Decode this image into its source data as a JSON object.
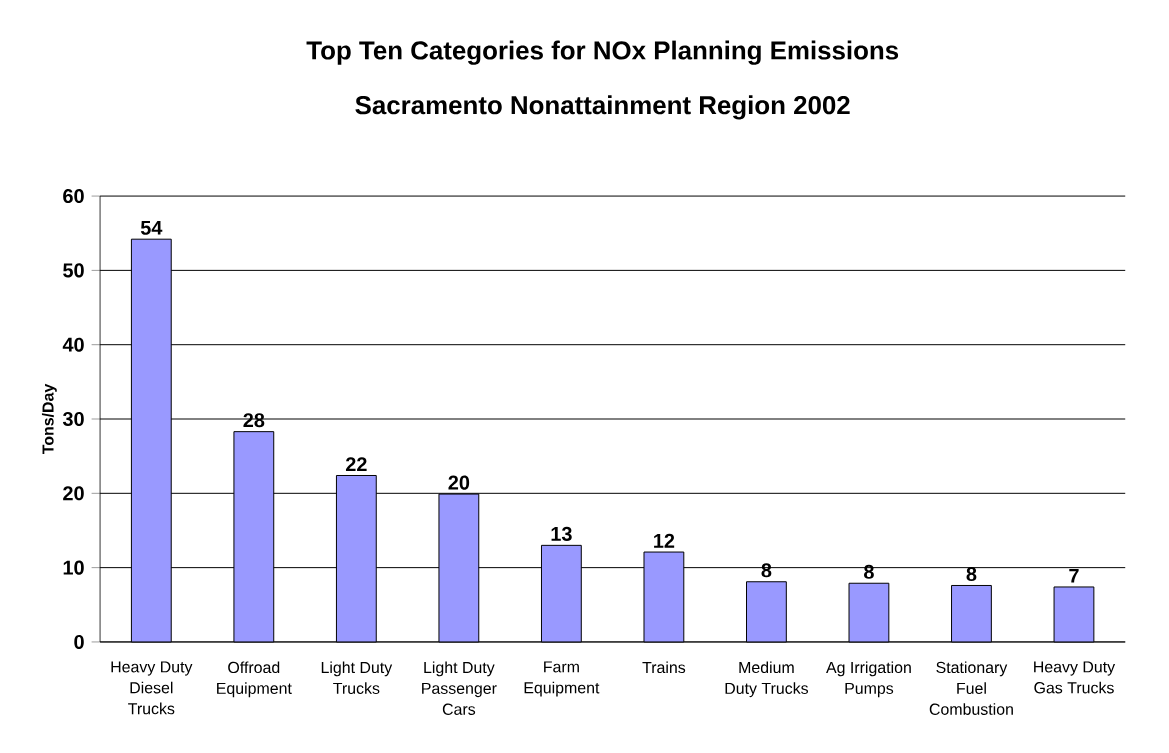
{
  "chart_data": {
    "type": "bar",
    "title": "Top Ten Categories for NOx Planning Emissions",
    "subtitle": "Sacramento Nonattainment Region 2002",
    "ylabel": "Tons/Day",
    "categories": [
      "Heavy Duty Diesel Trucks",
      "Offroad Equipment",
      "Light Duty Trucks",
      "Light Duty Passenger Cars",
      "Farm Equipment",
      "Trains",
      "Medium Duty Trucks",
      "Ag Irrigation Pumps",
      "Stationary Fuel Combustion",
      "Heavy Duty Gas Trucks"
    ],
    "values": [
      54.2,
      28.3,
      22.4,
      19.9,
      13.0,
      12.1,
      8.1,
      7.9,
      7.6,
      7.4
    ],
    "value_labels": [
      "54",
      "28",
      "22",
      "20",
      "13",
      "12",
      "8",
      "8",
      "8",
      "7"
    ],
    "color": "#9999ff",
    "ylim": [
      0,
      60
    ],
    "yticks": [
      0,
      10,
      20,
      30,
      40,
      50,
      60
    ],
    "grid": "y"
  }
}
